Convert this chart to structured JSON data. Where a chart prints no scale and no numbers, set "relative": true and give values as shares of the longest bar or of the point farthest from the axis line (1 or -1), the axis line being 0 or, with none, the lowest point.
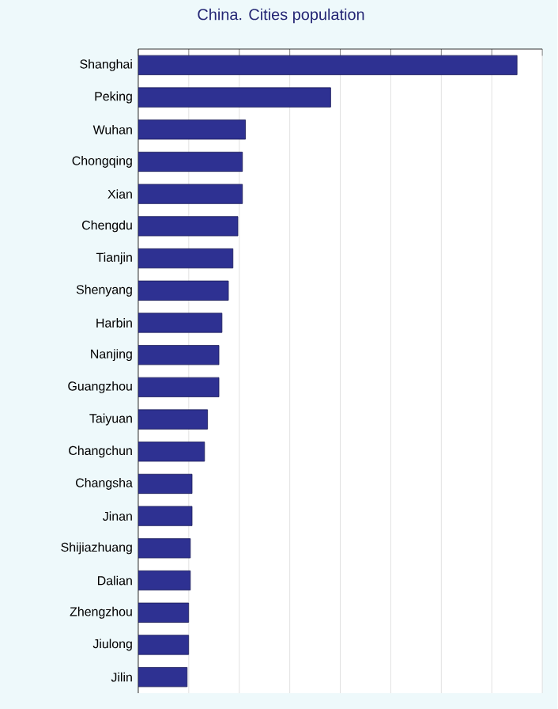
{
  "chart_data": {
    "type": "bar",
    "orientation": "horizontal",
    "relative": true,
    "title": "China. Cities population",
    "categories": [
      "Shanghai",
      "Peking",
      "Wuhan",
      "Chongqing",
      "Xian",
      "Chengdu",
      "Tianjin",
      "Shenyang",
      "Harbin",
      "Nanjing",
      "Guangzhou",
      "Taiyuan",
      "Changchun",
      "Changsha",
      "Jinan",
      "Shijiazhuang",
      "Dalian",
      "Zhengzhou",
      "Jiulong",
      "Jilin"
    ],
    "values": [
      1,
      0.508,
      0.283,
      0.275,
      0.275,
      0.263,
      0.25,
      0.238,
      0.221,
      0.213,
      0.213,
      0.183,
      0.175,
      0.142,
      0.142,
      0.1375,
      0.1375,
      0.133,
      0.133,
      0.129
    ],
    "color": "#2e3192",
    "grid": "x"
  }
}
